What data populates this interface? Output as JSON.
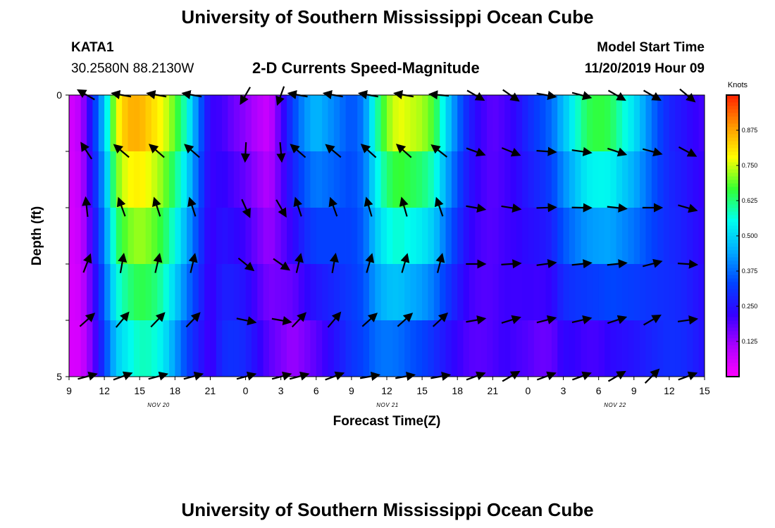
{
  "header": {
    "title": "University of Southern Mississippi Ocean Cube",
    "station_id": "KATA1",
    "station_coords": "30.2580N 88.2130W",
    "plot_title": "2-D Currents Speed-Magnitude",
    "model_label": "Model Start Time",
    "model_time": "11/20/2019 Hour 09"
  },
  "footer": {
    "title": "University of Southern Mississippi Ocean Cube"
  },
  "colors": {
    "scale": [
      "#ff00ff",
      "#aa00ff",
      "#3300ff",
      "#0044ff",
      "#00aaff",
      "#00ffee",
      "#33ff33",
      "#ffff00",
      "#ff9900",
      "#ff2200"
    ]
  },
  "chart_data": {
    "type": "heatmap",
    "title": "2-D Currents Speed-Magnitude",
    "xlabel": "Forecast Time(Z)",
    "ylabel": "Depth (ft)",
    "ylim": [
      0,
      5
    ],
    "y_ticks": [
      "0",
      "5"
    ],
    "x_ticks": [
      "9",
      "12",
      "15",
      "18",
      "21",
      "0",
      "3",
      "6",
      "9",
      "12",
      "15",
      "18",
      "21",
      "0",
      "3",
      "6",
      "9",
      "12",
      "15"
    ],
    "day_labels": [
      {
        "label": "NOV 20",
        "tick_index": 2.5
      },
      {
        "label": "NOV 21",
        "tick_index": 14.5
      },
      {
        "label": "NOV 22",
        "tick_index": 26.5
      }
    ],
    "x_range_hours": [
      0,
      54
    ],
    "colorbar": {
      "unit": "Knots",
      "min": 0.0,
      "max": 1.0,
      "ticks": [
        "0.125",
        "0.250",
        "0.375",
        "0.500",
        "0.625",
        "0.750",
        "0.875"
      ],
      "tick_values": [
        0.125,
        0.25,
        0.375,
        0.5,
        0.625,
        0.75,
        0.875
      ]
    },
    "depth_levels": [
      0,
      1,
      2,
      3,
      4,
      5
    ],
    "speed_profile": {
      "hours": [
        0,
        1,
        2,
        3,
        4,
        5,
        6,
        7,
        8,
        9,
        10,
        11,
        12,
        13,
        14,
        15,
        16,
        17,
        18,
        19,
        20,
        21,
        22,
        23,
        24,
        25,
        26,
        27,
        28,
        29,
        30,
        31,
        32,
        33,
        34,
        35,
        36,
        37,
        38,
        39,
        40,
        41,
        42,
        43,
        44,
        45,
        46,
        47,
        48,
        49,
        50,
        51,
        52,
        53,
        54
      ],
      "surface": [
        0.05,
        0.1,
        0.3,
        0.5,
        0.8,
        0.9,
        0.9,
        0.85,
        0.8,
        0.72,
        0.6,
        0.4,
        0.22,
        0.2,
        0.15,
        0.12,
        0.08,
        0.05,
        0.2,
        0.35,
        0.45,
        0.5,
        0.45,
        0.4,
        0.35,
        0.4,
        0.6,
        0.75,
        0.82,
        0.8,
        0.78,
        0.72,
        0.55,
        0.4,
        0.28,
        0.22,
        0.18,
        0.2,
        0.24,
        0.3,
        0.35,
        0.4,
        0.5,
        0.6,
        0.7,
        0.72,
        0.7,
        0.62,
        0.55,
        0.45,
        0.35,
        0.28,
        0.25,
        0.22,
        0.2
      ],
      "bottom": [
        0.05,
        0.05,
        0.15,
        0.3,
        0.45,
        0.5,
        0.55,
        0.55,
        0.5,
        0.4,
        0.3,
        0.25,
        0.2,
        0.3,
        0.32,
        0.3,
        0.25,
        0.2,
        0.15,
        0.1,
        0.12,
        0.15,
        0.2,
        0.25,
        0.3,
        0.32,
        0.35,
        0.35,
        0.33,
        0.3,
        0.28,
        0.25,
        0.22,
        0.2,
        0.18,
        0.18,
        0.2,
        0.22,
        0.2,
        0.18,
        0.15,
        0.15,
        0.2,
        0.18,
        0.15,
        0.15,
        0.18,
        0.2,
        0.22,
        0.25,
        0.28,
        0.3,
        0.3,
        0.28,
        0.25
      ]
    },
    "vectors": {
      "depths": [
        0,
        1,
        2,
        3,
        4,
        5
      ],
      "hours": [
        1.5,
        4.5,
        7.5,
        10.5,
        15,
        18,
        19.5,
        22.5,
        25.5,
        28.5,
        31.5,
        34.5,
        37.5,
        40.5,
        43.5,
        46.5,
        49.5,
        52.5
      ],
      "surface_direction_deg": [
        300,
        280,
        280,
        280,
        210,
        200,
        280,
        280,
        280,
        280,
        275,
        120,
        125,
        100,
        105,
        120,
        120,
        130
      ],
      "bottom_direction_deg": [
        75,
        70,
        75,
        75,
        75,
        75,
        75,
        70,
        80,
        80,
        80,
        70,
        60,
        70,
        70,
        60,
        45,
        70
      ]
    }
  }
}
